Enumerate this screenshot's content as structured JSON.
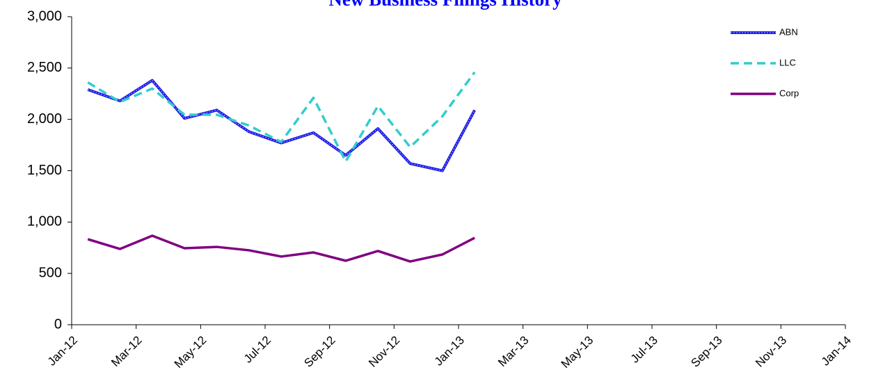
{
  "chart_data": {
    "type": "line",
    "title": "New Business Filings History",
    "categories": [
      "Jan-12",
      null,
      "Mar-12",
      null,
      "May-12",
      null,
      "Jul-12",
      null,
      "Sep-12",
      null,
      "Nov-12",
      null,
      "Jan-13",
      null,
      "Mar-13",
      null,
      "May-13",
      null,
      "Jul-13",
      null,
      "Sep-13",
      null,
      "Nov-13",
      null,
      "Jan-14"
    ],
    "series": [
      {
        "name": "ABN",
        "color": "#1a1ae6",
        "values": [
          2290,
          2180,
          2380,
          2010,
          2090,
          1880,
          1770,
          1870,
          1650,
          1910,
          1570,
          1500,
          2090,
          null,
          null,
          null,
          null,
          null,
          null,
          null,
          null,
          null,
          null,
          null,
          null
        ]
      },
      {
        "name": "LLC",
        "color": "#33cccc",
        "values": [
          2360,
          2170,
          2300,
          2045,
          2045,
          1940,
          1780,
          2210,
          1590,
          2130,
          1730,
          2030,
          2460,
          null,
          null,
          null,
          null,
          null,
          null,
          null,
          null,
          null,
          null,
          null,
          null
        ]
      },
      {
        "name": "Corp",
        "color": "#800080",
        "values": [
          833,
          738,
          867,
          745,
          758,
          725,
          664,
          704,
          623,
          718,
          616,
          684,
          846,
          null,
          null,
          null,
          null,
          null,
          null,
          null,
          null,
          null,
          null,
          null,
          null
        ]
      }
    ],
    "ylim": [
      0,
      3000
    ],
    "yticks": [
      0,
      500,
      {
        "value": 1000,
        "label": "1,000"
      },
      {
        "value": 1500,
        "label": "1,500"
      },
      {
        "value": 2000,
        "label": "2,000"
      },
      {
        "value": 2500,
        "label": "2,500"
      },
      {
        "value": 3000,
        "label": "3,000"
      }
    ],
    "legend": "top-right"
  }
}
